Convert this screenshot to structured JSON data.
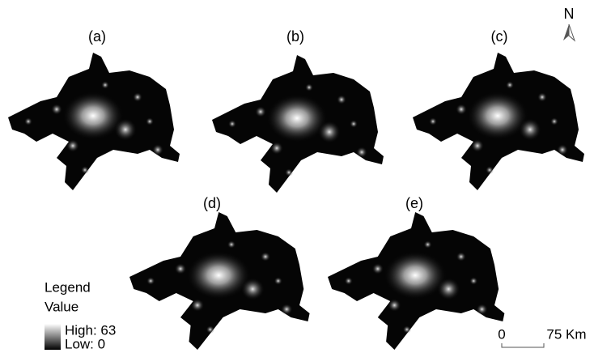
{
  "panels": [
    {
      "label": "(a)"
    },
    {
      "label": "(b)"
    },
    {
      "label": "(c)"
    },
    {
      "label": "(d)"
    },
    {
      "label": "(e)"
    }
  ],
  "north_arrow": {
    "label": "N"
  },
  "legend": {
    "title": "Legend",
    "subtitle": "Value",
    "high": "High: 63",
    "low": "Low: 0"
  },
  "scale_bar": {
    "start": "0",
    "end": "75 Km"
  }
}
